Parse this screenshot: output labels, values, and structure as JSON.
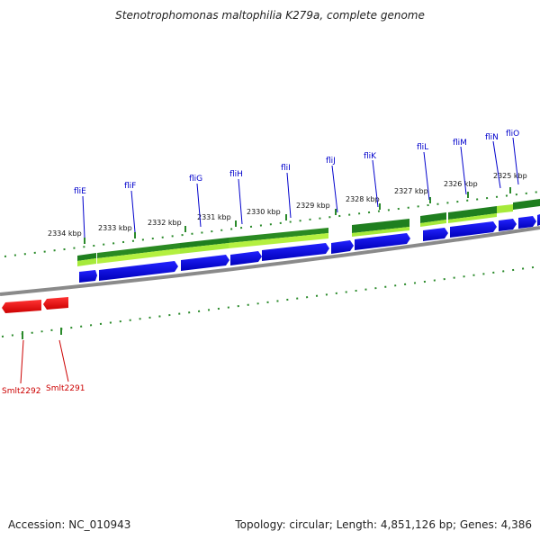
{
  "title": "Stenotrophomonas maltophilia K279a, complete genome",
  "accession_text": "Accession: NC_010943",
  "topology_text": "Topology: circular; Length: 4,851,126 bp; Genes: 4,386",
  "colors": {
    "forward_gene": "#0000ee",
    "reverse_gene": "#ee0000",
    "cds_dark": "#228822",
    "cds_light": "#aaee44",
    "backbone": "#888888",
    "tick": "#2a8a2a"
  },
  "scale_labels": [
    "2334 kbp",
    "2333 kbp",
    "2332 kbp",
    "2331 kbp",
    "2330 kbp",
    "2329 kbp",
    "2328 kbp",
    "2327 kbp",
    "2326 kbp",
    "2325 kbp"
  ],
  "forward_gene_labels": [
    "fliE",
    "fliF",
    "fliG",
    "fliH",
    "fliI",
    "fliJ",
    "fliK",
    "fliL",
    "fliM",
    "fliN",
    "fliO"
  ],
  "reverse_gene_labels": [
    "Smlt2292",
    "Smlt2291"
  ]
}
